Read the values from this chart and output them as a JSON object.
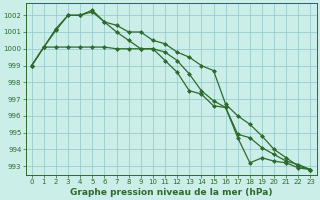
{
  "background_color": "#cceee8",
  "grid_color": "#99cccc",
  "line_color": "#2d6a2d",
  "markersize": 2.5,
  "linewidth": 0.9,
  "title": "Graphe pression niveau de la mer (hPa)",
  "title_fontsize": 6.5,
  "ylim": [
    992.5,
    1002.7
  ],
  "yticks": [
    993,
    994,
    995,
    996,
    997,
    998,
    999,
    1000,
    1001,
    1002
  ],
  "xlim": [
    -0.5,
    23.5
  ],
  "xticks": [
    0,
    1,
    2,
    3,
    4,
    5,
    6,
    7,
    8,
    9,
    10,
    11,
    12,
    13,
    14,
    15,
    16,
    17,
    18,
    19,
    20,
    21,
    22,
    23
  ],
  "series": [
    [
      999.0,
      1000.1,
      1001.2,
      1002.0,
      1002.0,
      1002.3,
      1001.6,
      1001.0,
      1000.5,
      1000.0,
      1000.0,
      999.3,
      998.6,
      997.5,
      997.3,
      996.6,
      996.5,
      994.7,
      993.2,
      993.5,
      993.3,
      993.2,
      992.9,
      992.8
    ],
    [
      999.0,
      1000.1,
      1001.1,
      1002.0,
      1002.0,
      1002.2,
      1001.6,
      1001.4,
      1001.0,
      1001.0,
      1000.5,
      1000.3,
      999.8,
      999.5,
      999.0,
      998.7,
      996.7,
      996.0,
      995.5,
      994.8,
      994.0,
      993.5,
      993.0,
      992.8
    ],
    [
      999.0,
      1000.1,
      1000.1,
      1000.1,
      1000.1,
      1000.1,
      1000.1,
      1000.0,
      1000.0,
      1000.0,
      1000.0,
      999.8,
      999.3,
      998.5,
      997.5,
      996.9,
      996.5,
      994.9,
      994.7,
      994.1,
      993.7,
      993.3,
      993.1,
      992.8
    ]
  ]
}
